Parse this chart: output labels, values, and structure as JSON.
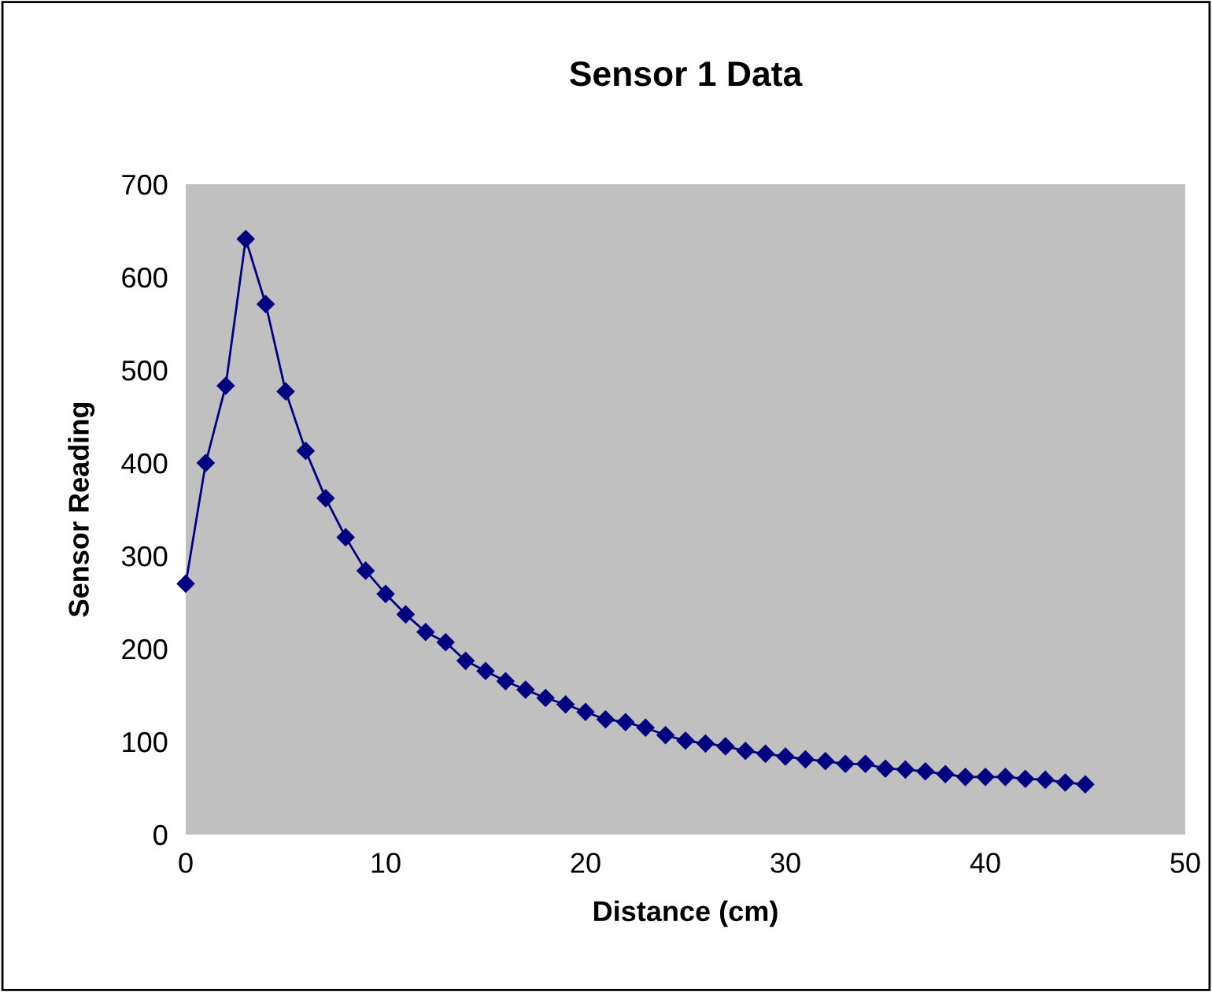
{
  "chart_data": {
    "type": "line",
    "title": "Sensor 1 Data",
    "xlabel": "Distance (cm)",
    "ylabel": "Sensor Reading",
    "x": [
      0,
      1,
      2,
      3,
      4,
      5,
      6,
      7,
      8,
      9,
      10,
      11,
      12,
      13,
      14,
      15,
      16,
      17,
      18,
      19,
      20,
      21,
      22,
      23,
      24,
      25,
      26,
      27,
      28,
      29,
      30,
      31,
      32,
      33,
      34,
      35,
      36,
      37,
      38,
      39,
      40,
      41,
      42,
      43,
      44,
      45
    ],
    "series": [
      {
        "color": "#000080",
        "values": [
          270,
          400,
          483,
          641,
          571,
          477,
          413,
          362,
          320,
          284,
          259,
          237,
          218,
          207,
          187,
          176,
          165,
          156,
          147,
          140,
          132,
          124,
          121,
          115,
          107,
          101,
          98,
          95,
          90,
          87,
          84,
          81,
          79,
          76,
          76,
          71,
          70,
          68,
          65,
          62,
          62,
          62,
          60,
          59,
          56,
          54
        ]
      }
    ],
    "xlim": [
      0,
      50
    ],
    "xticks": [
      0,
      10,
      20,
      30,
      40,
      50
    ],
    "ylim": [
      0,
      700
    ],
    "yticks": [
      0,
      100,
      200,
      300,
      400,
      500,
      600,
      700
    ],
    "marker": "diamond",
    "line_style": "solid",
    "grid": false
  }
}
